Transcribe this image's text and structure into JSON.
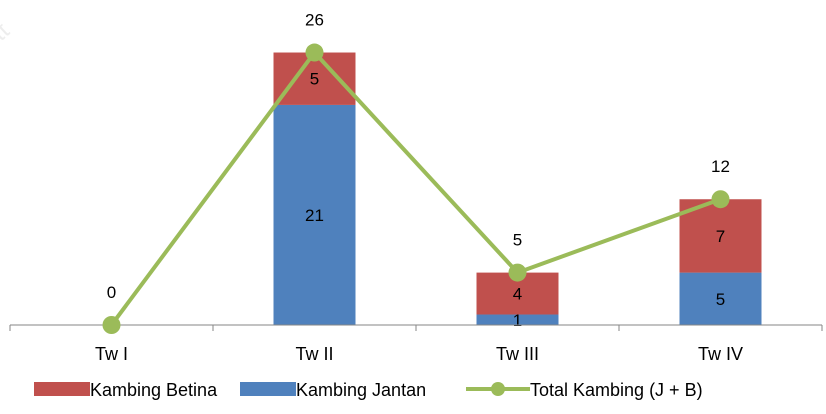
{
  "chart_data": {
    "type": "bar",
    "stacked": true,
    "categories": [
      "Tw I",
      "Tw II",
      "Tw III",
      "Tw IV"
    ],
    "series": [
      {
        "name": "Kambing Jantan",
        "type": "bar",
        "color": "#4F81BD",
        "values": [
          0,
          21,
          1,
          5
        ],
        "labels": [
          "0",
          "21",
          "1",
          "5"
        ]
      },
      {
        "name": "Kambing Betina",
        "type": "bar",
        "color": "#C0504D",
        "values": [
          0,
          5,
          4,
          7
        ],
        "labels": [
          "",
          "5",
          "4",
          "7"
        ]
      },
      {
        "name": "Total Kambing (J + B)",
        "type": "line",
        "color": "#9BBB59",
        "values": [
          0,
          26,
          5,
          12
        ],
        "labels": [
          "0",
          "26",
          "5",
          "12"
        ]
      }
    ],
    "legend": {
      "position": "bottom",
      "order": [
        "Kambing Betina",
        "Kambing Jantan",
        "Total Kambing (J + B)"
      ]
    },
    "ylim": [
      0,
      28
    ],
    "title": "",
    "xlabel": "",
    "ylabel": "",
    "grid": false
  }
}
